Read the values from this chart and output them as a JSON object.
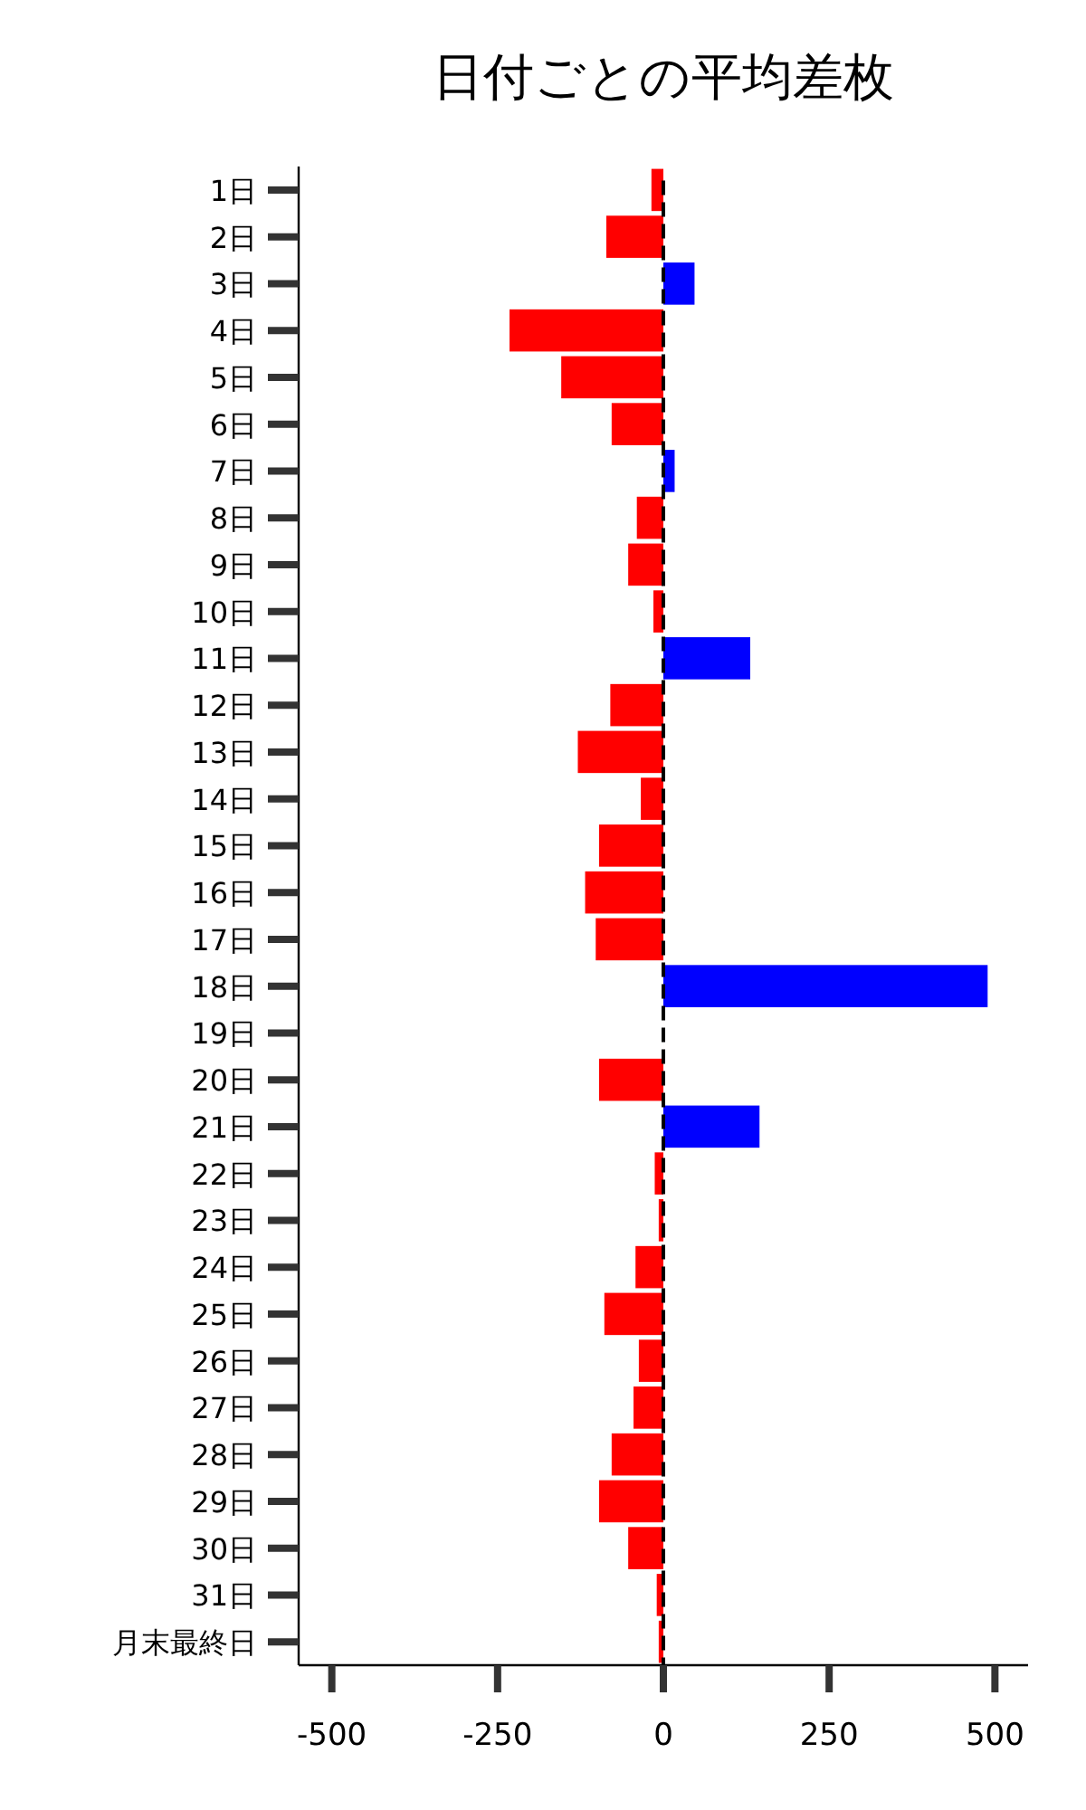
{
  "chart_data": {
    "type": "bar",
    "orientation": "horizontal",
    "title": "日付ごとの平均差枚",
    "categories": [
      "1日",
      "2日",
      "3日",
      "4日",
      "5日",
      "6日",
      "7日",
      "8日",
      "9日",
      "10日",
      "11日",
      "12日",
      "13日",
      "14日",
      "15日",
      "16日",
      "17日",
      "18日",
      "19日",
      "20日",
      "21日",
      "22日",
      "23日",
      "24日",
      "25日",
      "26日",
      "27日",
      "28日",
      "29日",
      "30日",
      "31日",
      "月末最終日"
    ],
    "values": [
      -18,
      -86,
      47,
      -232,
      -154,
      -78,
      17,
      -40,
      -53,
      -15,
      131,
      -80,
      -129,
      -34,
      -97,
      -118,
      -102,
      489,
      0,
      -97,
      145,
      -13,
      -7,
      -42,
      -89,
      -37,
      -45,
      -78,
      -97,
      -53,
      -10,
      -7
    ],
    "colors": [
      "#ff0000",
      "#ff0000",
      "#0000ff",
      "#ff0000",
      "#ff0000",
      "#ff0000",
      "#0000ff",
      "#ff0000",
      "#ff0000",
      "#ff0000",
      "#0000ff",
      "#ff0000",
      "#ff0000",
      "#ff0000",
      "#ff0000",
      "#ff0000",
      "#ff0000",
      "#0000ff",
      "#ff0000",
      "#ff0000",
      "#0000ff",
      "#ff0000",
      "#ff0000",
      "#ff0000",
      "#ff0000",
      "#ff0000",
      "#ff0000",
      "#ff0000",
      "#ff0000",
      "#ff0000",
      "#ff0000",
      "#ff0000"
    ],
    "xlim": [
      -550,
      550
    ],
    "xticks": [
      -500,
      -250,
      0,
      250,
      500
    ],
    "ref_lines": [
      {
        "axis": "x",
        "value": 0,
        "color": "#000000",
        "line_style": "dashed"
      }
    ],
    "grid": false
  }
}
